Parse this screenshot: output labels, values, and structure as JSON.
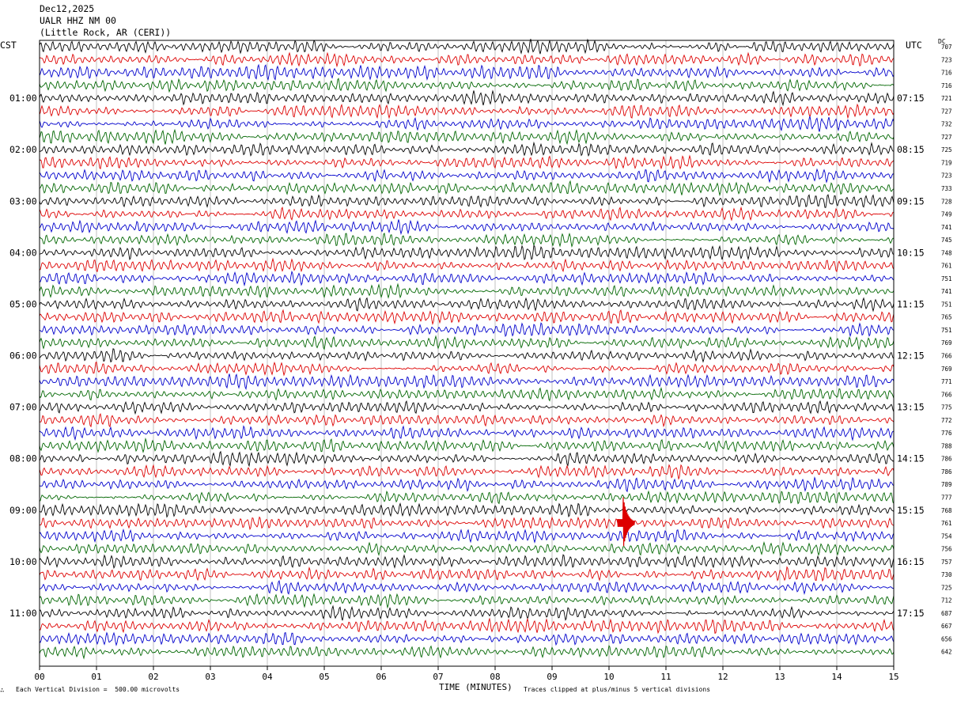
{
  "header": {
    "date": "Dec12,2025",
    "station": "UALR HHZ NM 00",
    "location": "(Little Rock, AR (CERI))"
  },
  "left_tz": "CST",
  "right_tz": "UTC",
  "dc_label": "DC",
  "footer": {
    "scale_note": "Each Vertical Division =  500.00 microvolts",
    "clip_note": "Traces clipped at plus/minus 5 vertical divisions",
    "corner_mark": "∴"
  },
  "colors": {
    "trace_cycle": [
      "#000000",
      "#dd0000",
      "#0000cc",
      "#006600"
    ],
    "grid": "#999999"
  },
  "chart_data": {
    "type": "line",
    "title": "UALR HHZ NM 00",
    "xlabel": "TIME (MINUTES)",
    "ylabel": "",
    "xlim": [
      0,
      15
    ],
    "x_ticks": [
      "00",
      "01",
      "02",
      "03",
      "04",
      "05",
      "06",
      "07",
      "08",
      "09",
      "10",
      "11",
      "12",
      "13",
      "14",
      "15"
    ],
    "trace_count": 48,
    "trace_minutes_each": 15,
    "left_hour_labels": [
      "01:00",
      "02:00",
      "03:00",
      "04:00",
      "05:00",
      "06:00",
      "07:00",
      "08:00",
      "09:00",
      "10:00",
      "11:00"
    ],
    "right_hour_labels": [
      "07:15",
      "08:15",
      "09:15",
      "10:15",
      "11:15",
      "12:15",
      "13:15",
      "14:15",
      "15:15",
      "16:15",
      "17:15"
    ],
    "hour_label_trace_index": [
      4,
      8,
      12,
      16,
      20,
      24,
      28,
      32,
      36,
      40,
      44
    ],
    "dc_offsets": [
      "707",
      "723",
      "716",
      "716",
      "721",
      "727",
      "732",
      "727",
      "725",
      "719",
      "723",
      "733",
      "728",
      "749",
      "741",
      "745",
      "748",
      "761",
      "751",
      "741",
      "751",
      "765",
      "751",
      "769",
      "766",
      "769",
      "771",
      "766",
      "775",
      "772",
      "776",
      "788",
      "786",
      "786",
      "789",
      "777",
      "768",
      "761",
      "754",
      "756",
      "757",
      "730",
      "725",
      "712",
      "687",
      "667",
      "656",
      "642"
    ],
    "events": [
      {
        "trace_index": 37,
        "minute": 10.25,
        "amplitude_divisions": 5,
        "note": "clipped"
      }
    ]
  }
}
